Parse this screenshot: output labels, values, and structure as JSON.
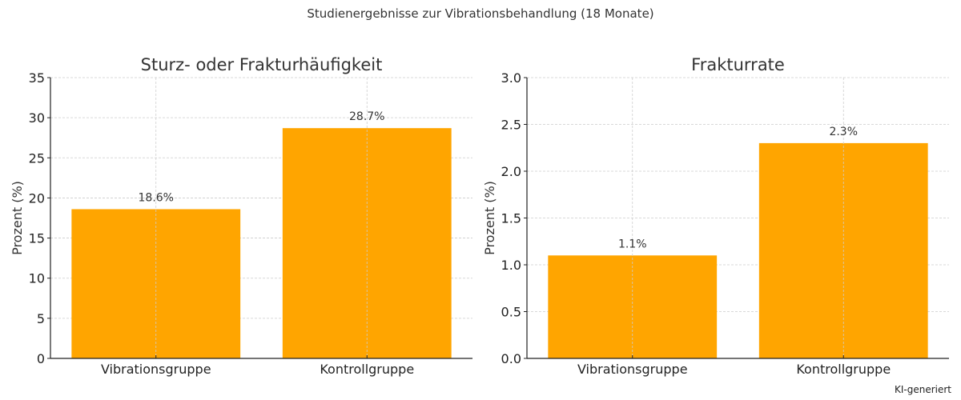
{
  "figure": {
    "suptitle": "Studienergebnisse zur Vibrationsbehandlung (18 Monate)",
    "watermark": "KI-generiert",
    "bar_color": "#FFA500"
  },
  "chart_data": [
    {
      "type": "bar",
      "title": "Sturz- oder Frakturhäufigkeit",
      "xlabel": "",
      "ylabel": "Prozent (%)",
      "categories": [
        "Vibrationsgruppe",
        "Kontrollgruppe"
      ],
      "values": [
        18.6,
        28.7
      ],
      "value_labels": [
        "18.6%",
        "28.7%"
      ],
      "ylim": [
        0,
        35
      ],
      "yticks": [
        0,
        5,
        10,
        15,
        20,
        25,
        30,
        35
      ],
      "ytick_labels": [
        "0",
        "5",
        "10",
        "15",
        "20",
        "25",
        "30",
        "35"
      ],
      "grid": true,
      "color": "#FFA500"
    },
    {
      "type": "bar",
      "title": "Frakturrate",
      "xlabel": "",
      "ylabel": "Prozent (%)",
      "categories": [
        "Vibrationsgruppe",
        "Kontrollgruppe"
      ],
      "values": [
        1.1,
        2.3
      ],
      "value_labels": [
        "1.1%",
        "2.3%"
      ],
      "ylim": [
        0,
        3.0
      ],
      "yticks": [
        0,
        0.5,
        1.0,
        1.5,
        2.0,
        2.5,
        3.0
      ],
      "ytick_labels": [
        "0.0",
        "0.5",
        "1.0",
        "1.5",
        "2.0",
        "2.5",
        "3.0"
      ],
      "grid": true,
      "color": "#FFA500"
    }
  ]
}
